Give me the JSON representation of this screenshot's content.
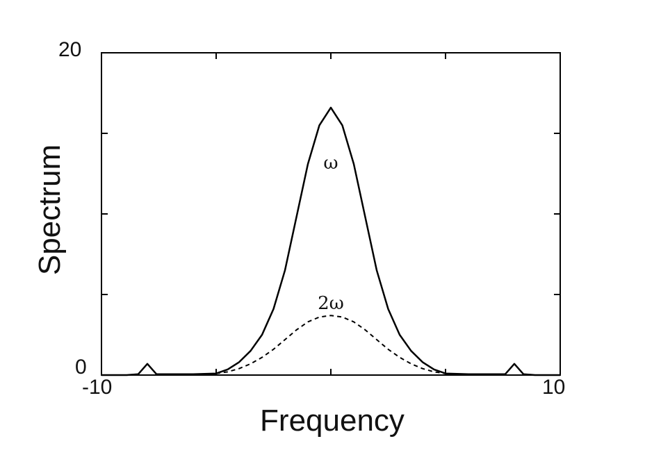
{
  "chart_data": {
    "type": "line",
    "title": "",
    "xlabel": "Frequency",
    "ylabel": "Spectrum",
    "xlim": [
      -10,
      10
    ],
    "ylim": [
      0,
      20
    ],
    "x_tick_labels": [
      "-10",
      "10"
    ],
    "y_tick_labels": [
      "0",
      "20"
    ],
    "grid": false,
    "legend": "none",
    "series": [
      {
        "name": "ω",
        "style": "solid",
        "color": "#000000",
        "x": [
          -10,
          -8.9,
          -8.4,
          -8.0,
          -7.6,
          -7.0,
          -6.0,
          -5.0,
          -4.5,
          -4.0,
          -3.5,
          -3.0,
          -2.5,
          -2.0,
          -1.5,
          -1.0,
          -0.5,
          0,
          0.5,
          1.0,
          1.5,
          2.0,
          2.5,
          3.0,
          3.5,
          4.0,
          4.5,
          5.0,
          6.0,
          7.0,
          7.6,
          8.0,
          8.4,
          8.9,
          10
        ],
        "values": [
          0,
          0,
          0.05,
          0.7,
          0.05,
          0.05,
          0.05,
          0.1,
          0.35,
          0.8,
          1.5,
          2.5,
          4.1,
          6.5,
          9.8,
          13.1,
          15.5,
          16.6,
          15.5,
          13.1,
          9.8,
          6.5,
          4.1,
          2.5,
          1.5,
          0.8,
          0.35,
          0.1,
          0.05,
          0.05,
          0.05,
          0.7,
          0.05,
          0,
          0
        ]
      },
      {
        "name": "2ω",
        "style": "dashed",
        "color": "#000000",
        "x": [
          -10,
          -6.0,
          -5.0,
          -4.5,
          -4.0,
          -3.5,
          -3.0,
          -2.5,
          -2.0,
          -1.5,
          -1.0,
          -0.5,
          0,
          0.5,
          1.0,
          1.5,
          2.0,
          2.5,
          3.0,
          3.5,
          4.0,
          4.5,
          5.0,
          6.0,
          10
        ],
        "values": [
          0,
          0,
          0.1,
          0.2,
          0.4,
          0.7,
          1.1,
          1.6,
          2.2,
          2.8,
          3.3,
          3.6,
          3.7,
          3.6,
          3.3,
          2.8,
          2.2,
          1.6,
          1.1,
          0.7,
          0.4,
          0.2,
          0.1,
          0,
          0
        ]
      }
    ],
    "annotations": [
      {
        "text": "ω",
        "x": 0,
        "y": 12.8
      },
      {
        "text": "2ω",
        "x": 0,
        "y": 4.1
      }
    ]
  }
}
